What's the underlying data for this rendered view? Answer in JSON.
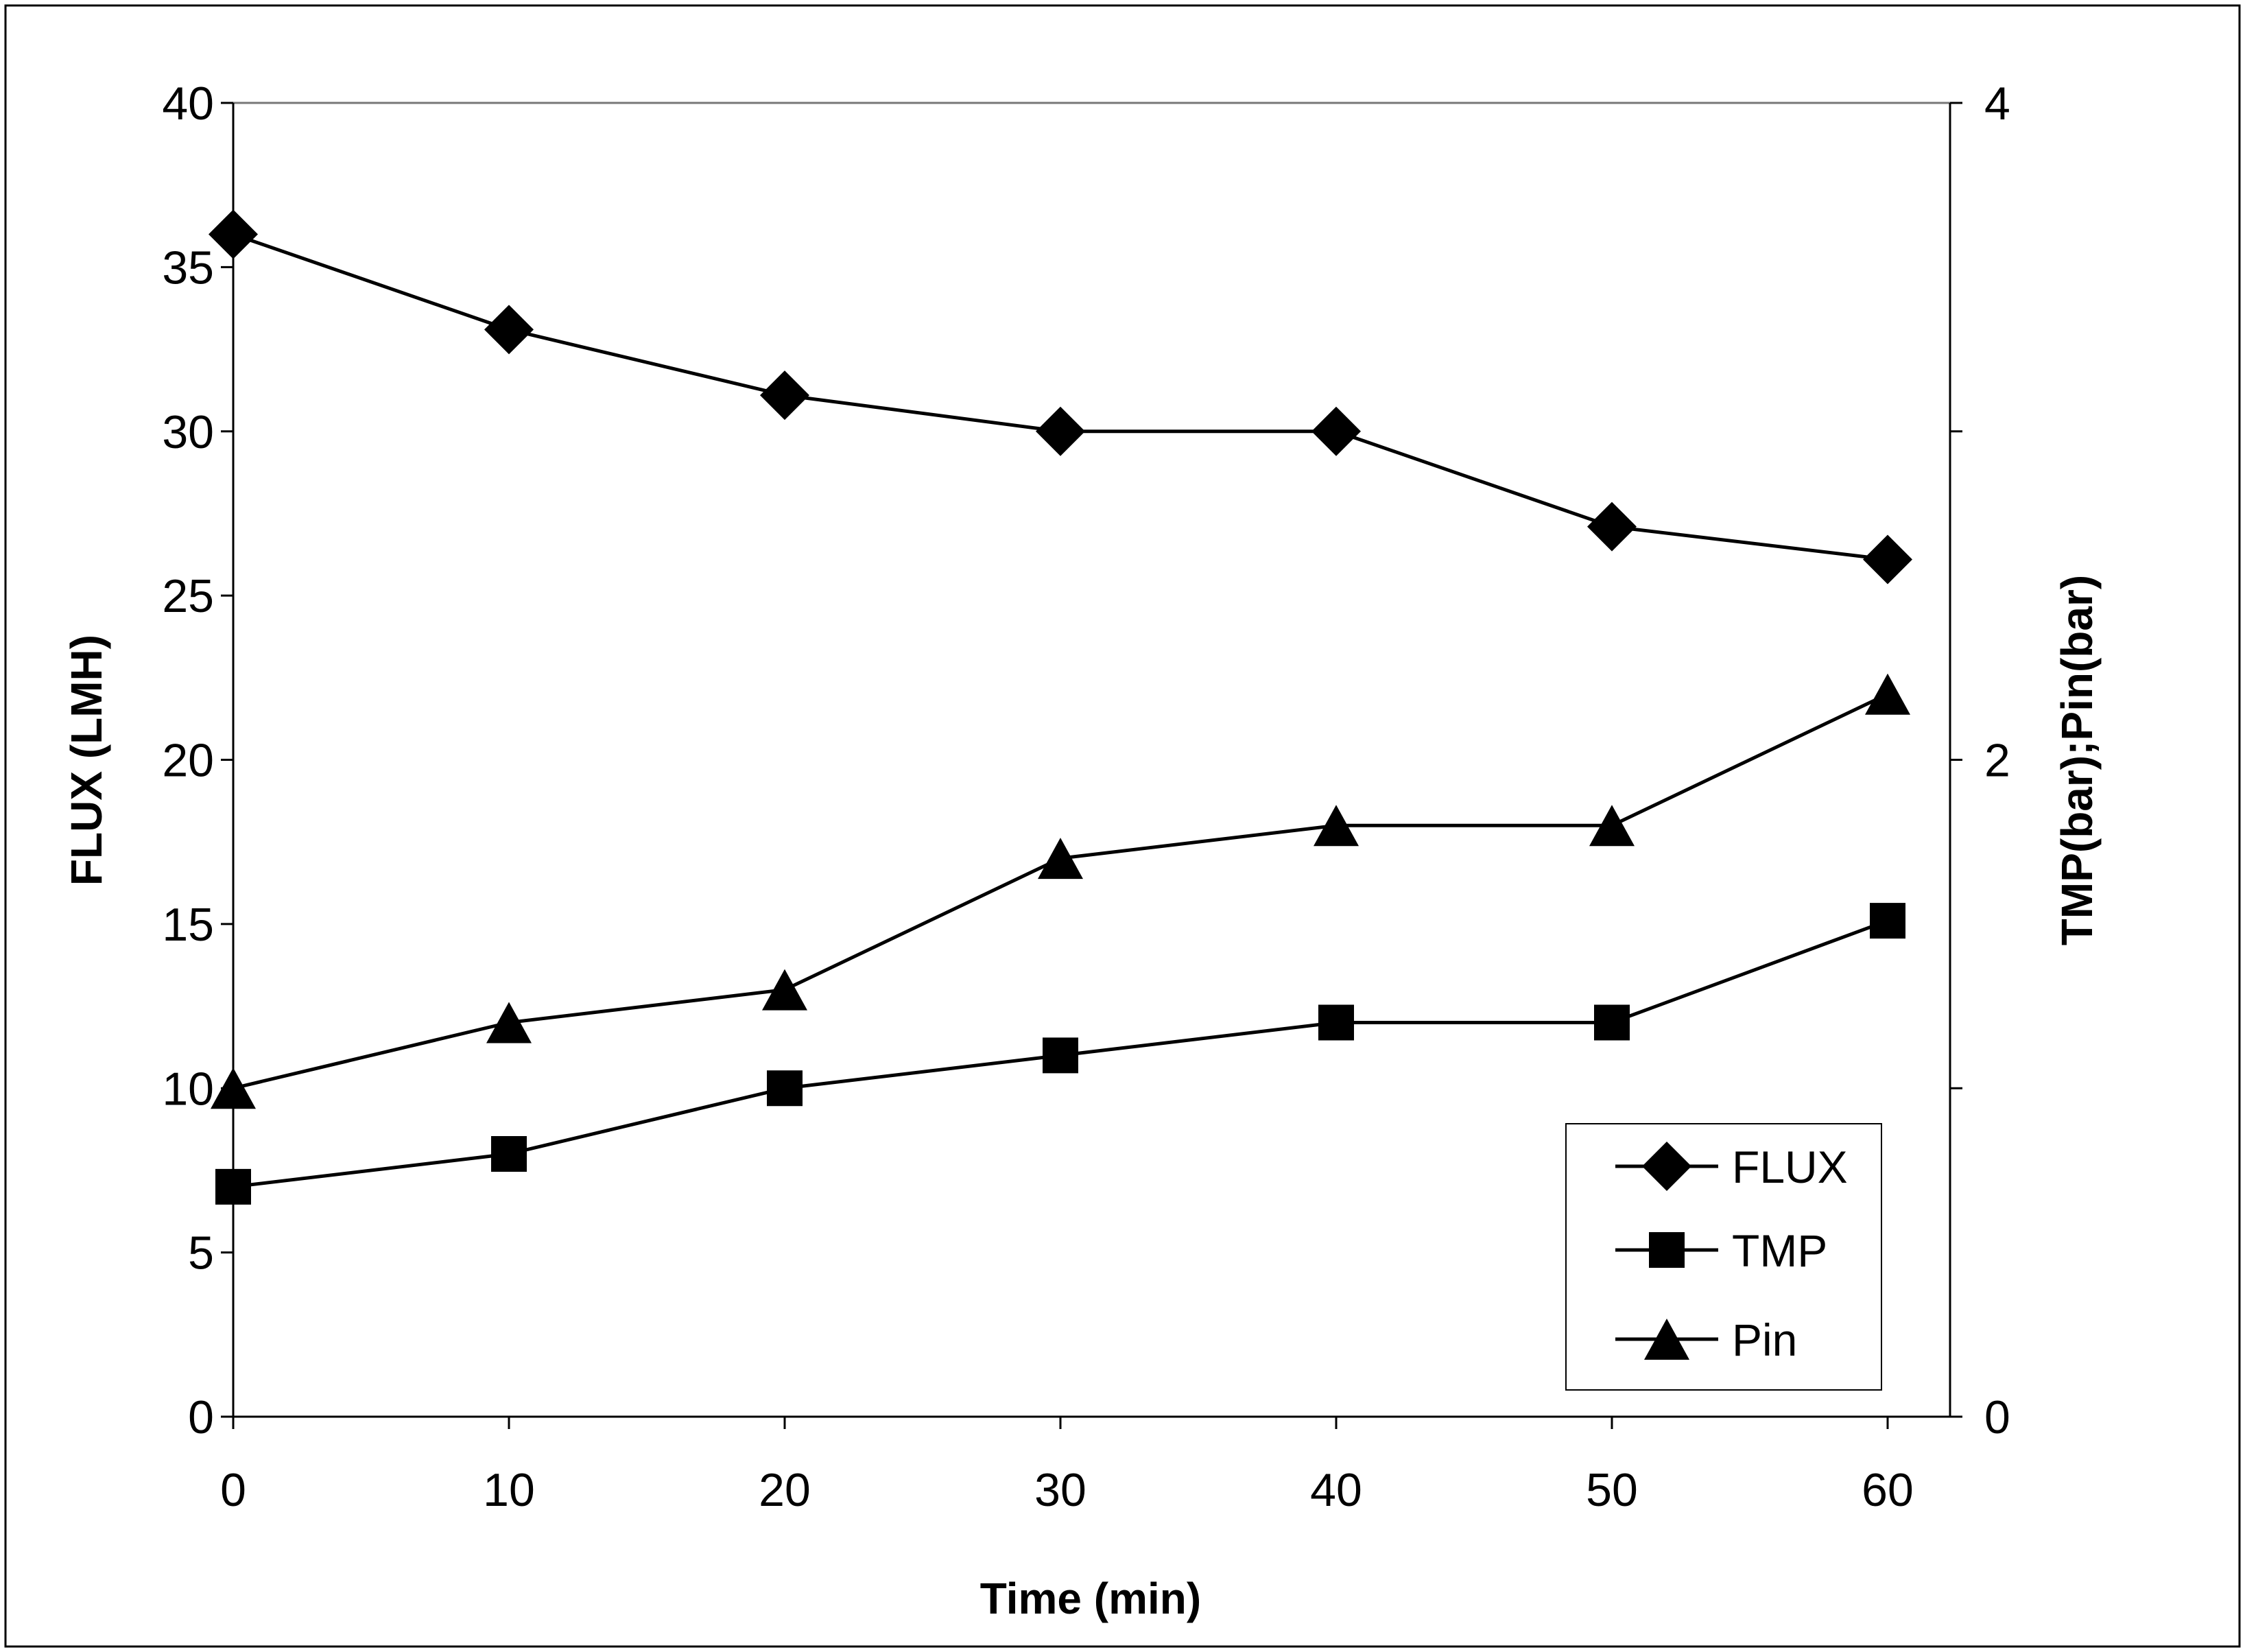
{
  "chart_data": {
    "type": "line",
    "title": "",
    "xlabel": "Time (min)",
    "ylabel": "FLUX (LMH)",
    "y2label": "TMP(bar);Pin(bar)",
    "x": [
      0,
      10,
      20,
      30,
      40,
      50,
      60
    ],
    "xlim": [
      0,
      62
    ],
    "xticks": [
      0,
      10,
      20,
      30,
      40,
      50,
      60
    ],
    "ylim": [
      0,
      40
    ],
    "yticks": [
      0,
      5,
      10,
      15,
      20,
      25,
      30,
      35,
      40
    ],
    "y2lim": [
      0,
      4
    ],
    "y2ticks": [
      0,
      1,
      2,
      3,
      4
    ],
    "y2ticklabels": [
      "0",
      "",
      "2",
      "",
      "4"
    ],
    "grid": false,
    "legend_position": "bottom-right",
    "series": [
      {
        "name": "FLUX",
        "axis": "left",
        "marker": "diamond",
        "values": [
          36,
          33.1,
          31.1,
          30,
          30,
          27.1,
          26.1
        ]
      },
      {
        "name": "TMP",
        "axis": "right",
        "marker": "square",
        "values": [
          0.7,
          0.8,
          1.0,
          1.1,
          1.2,
          1.2,
          1.51
        ]
      },
      {
        "name": "Pin",
        "axis": "right",
        "marker": "triangle",
        "values": [
          1.0,
          1.2,
          1.3,
          1.7,
          1.8,
          1.8,
          2.2
        ]
      }
    ]
  }
}
